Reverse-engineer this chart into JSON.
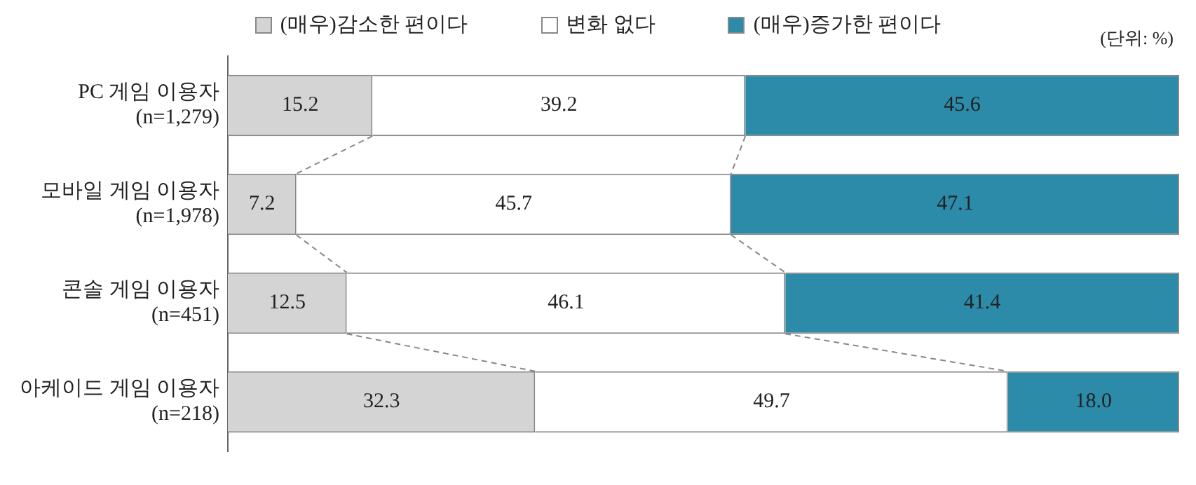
{
  "chart_data": {
    "type": "bar",
    "orientation": "horizontal",
    "stacked": true,
    "categories": [
      "PC 게임 이용자\n(n=1,279)",
      "모바일 게임 이용자\n(n=1,978)",
      "콘솔 게임 이용자\n(n=451)",
      "아케이드 게임 이용자\n(n=218)"
    ],
    "series": [
      {
        "name": "(매우)감소한 편이다",
        "color": "#d4d4d4",
        "values": [
          15.2,
          7.2,
          12.5,
          32.3
        ],
        "value_labels": [
          "15.2",
          "7.2",
          "12.5",
          "32.3"
        ]
      },
      {
        "name": "변화 없다",
        "color": "#ffffff",
        "values": [
          39.2,
          45.7,
          46.1,
          49.7
        ],
        "value_labels": [
          "39.2",
          "45.7",
          "46.1",
          "49.7"
        ]
      },
      {
        "name": "(매우)증가한 편이다",
        "color": "#2b8ba8",
        "values": [
          45.6,
          47.1,
          41.4,
          18.0
        ],
        "value_labels": [
          "45.6",
          "47.1",
          "41.4",
          "18.0"
        ]
      }
    ],
    "xlim": [
      0,
      100
    ],
    "tick_labels": "y",
    "grid": false,
    "legend": "top",
    "annotations": [
      "(단위: %)"
    ]
  }
}
